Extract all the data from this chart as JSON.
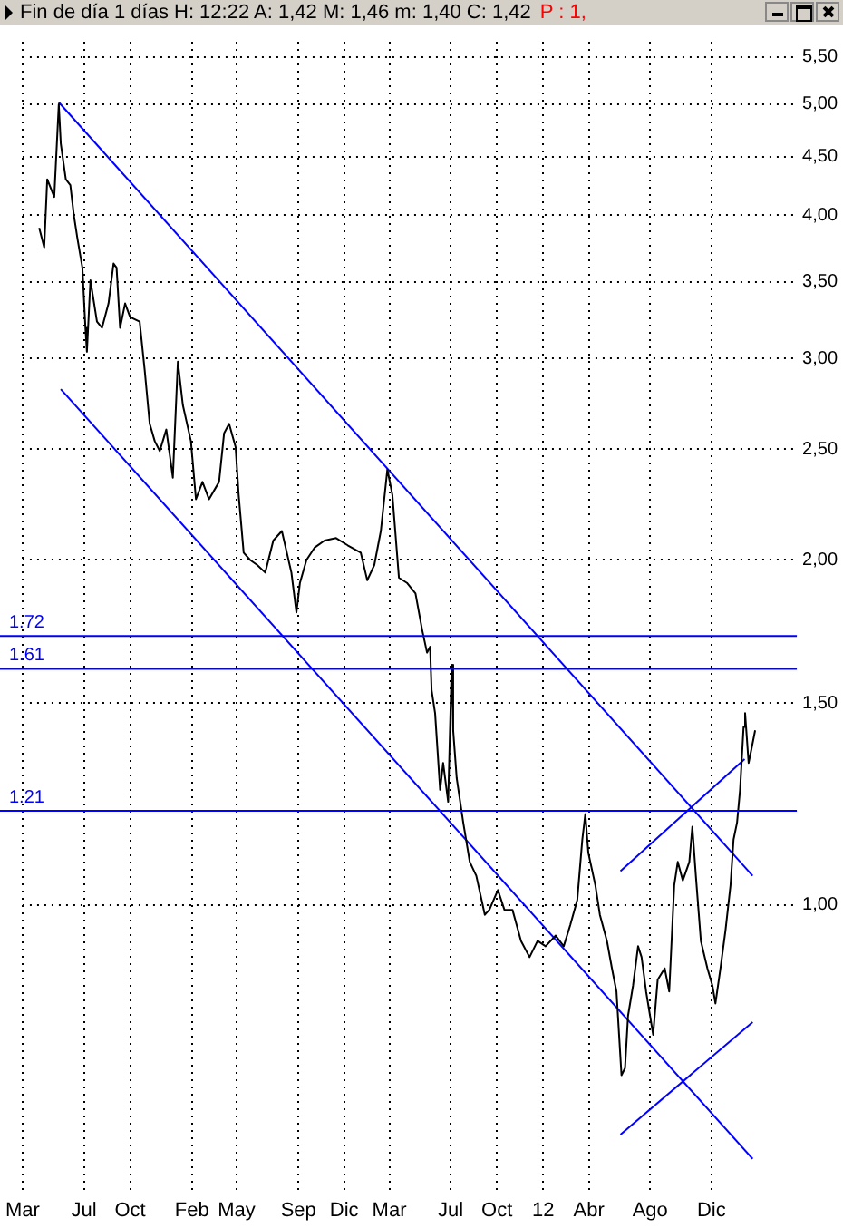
{
  "chart_data": {
    "type": "line",
    "title": "Fin de día 1 días H: 12:22 A: 1,42 M: 1,46 m: 1,40 C: 1,42",
    "annotations": [
      "P : 1,"
    ],
    "log": "y",
    "grid": true,
    "xlim": [
      "2009-03-01",
      "2013-05-20"
    ],
    "xticks": [
      {
        "value": "2009-03-01",
        "label": "Mar"
      },
      {
        "value": "2009-07-01",
        "label": "Jul"
      },
      {
        "value": "2009-10-01",
        "label": "Oct"
      },
      {
        "value": "2010-02-01",
        "label": "Feb"
      },
      {
        "value": "2010-05-01",
        "label": "May"
      },
      {
        "value": "2010-09-01",
        "label": "Sep"
      },
      {
        "value": "2010-12-01",
        "label": "Dic"
      },
      {
        "value": "2011-03-01",
        "label": "Mar"
      },
      {
        "value": "2011-07-01",
        "label": "Jul"
      },
      {
        "value": "2011-10-01",
        "label": "Oct"
      },
      {
        "value": "2012-01-01",
        "label": "12"
      },
      {
        "value": "2012-04-01",
        "label": "Abr"
      },
      {
        "value": "2012-08-01",
        "label": "Ago"
      },
      {
        "value": "2012-12-01",
        "label": "Dic"
      }
    ],
    "ylim": [
      0.56,
      5.67
    ],
    "yticks": [
      {
        "value": 1,
        "label": "1,00"
      },
      {
        "value": 1.5,
        "label": "1,50"
      },
      {
        "value": 2,
        "label": "2,00"
      },
      {
        "value": 2.5,
        "label": "2,50"
      },
      {
        "value": 3,
        "label": "3,00"
      },
      {
        "value": 3.5,
        "label": "3,50"
      },
      {
        "value": 4,
        "label": "4,00"
      },
      {
        "value": 4.5,
        "label": "4,50"
      },
      {
        "value": 5,
        "label": "5,00"
      },
      {
        "value": 5.5,
        "label": "5,50"
      }
    ],
    "ref_lines": [
      {
        "axis": "y",
        "value": 1.72,
        "label": "1.72",
        "color": "#0000ff"
      },
      {
        "axis": "y",
        "value": 1.61,
        "label": "1.61",
        "color": "#0000ff"
      },
      {
        "axis": "y",
        "value": 1.21,
        "label": "1.21",
        "color": "#0000ff"
      }
    ],
    "series": [
      {
        "color": "#000000",
        "x": [
          "2009-04-03",
          "2009-04-13",
          "2009-04-19",
          "2009-05-03",
          "2009-05-12",
          "2009-05-16",
          "2009-05-26",
          "2009-06-04",
          "2009-06-11",
          "2009-06-18",
          "2009-06-28",
          "2009-07-04",
          "2009-07-07",
          "2009-07-14",
          "2009-07-27",
          "2009-08-06",
          "2009-08-19",
          "2009-08-29",
          "2009-09-04",
          "2009-09-11",
          "2009-09-21",
          "2009-10-01",
          "2009-10-20",
          "2009-10-30",
          "2009-11-09",
          "2009-11-19",
          "2009-11-29",
          "2009-12-12",
          "2009-12-25",
          "2010-01-04",
          "2010-01-14",
          "2010-01-30",
          "2010-02-09",
          "2010-02-22",
          "2010-03-07",
          "2010-03-27",
          "2010-04-06",
          "2010-04-16",
          "2010-04-29",
          "2010-05-05",
          "2010-05-15",
          "2010-05-28",
          "2010-06-11",
          "2010-06-27",
          "2010-07-13",
          "2010-07-30",
          "2010-08-18",
          "2010-08-28",
          "2010-09-04",
          "2010-09-17",
          "2010-10-03",
          "2010-10-23",
          "2010-11-15",
          "2010-12-08",
          "2011-01-03",
          "2011-01-16",
          "2011-01-30",
          "2011-02-12",
          "2011-02-25",
          "2011-03-07",
          "2011-03-20",
          "2011-04-05",
          "2011-04-22",
          "2011-05-05",
          "2011-05-15",
          "2011-05-21",
          "2011-05-24",
          "2011-05-31",
          "2011-06-10",
          "2011-06-16",
          "2011-06-26",
          "2011-07-03",
          "2011-07-06",
          "2011-07-13",
          "2011-07-26",
          "2011-08-08",
          "2011-08-21",
          "2011-09-07",
          "2011-09-16",
          "2011-10-03",
          "2011-10-16",
          "2011-11-01",
          "2011-11-18",
          "2011-12-05",
          "2011-12-21",
          "2012-01-06",
          "2012-01-26",
          "2012-02-11",
          "2012-02-24",
          "2012-03-09",
          "2012-03-19",
          "2012-03-25",
          "2012-03-31",
          "2012-04-14",
          "2012-04-23",
          "2012-05-07",
          "2012-05-17",
          "2012-05-26",
          "2012-06-05",
          "2012-06-12",
          "2012-06-18",
          "2012-06-28",
          "2012-07-08",
          "2012-07-15",
          "2012-07-24",
          "2012-08-07",
          "2012-08-16",
          "2012-08-30",
          "2012-09-08",
          "2012-09-18",
          "2012-09-25",
          "2012-10-05",
          "2012-10-18",
          "2012-10-24",
          "2012-10-31",
          "2012-11-10",
          "2012-11-23",
          "2012-12-03",
          "2012-12-09",
          "2012-12-19",
          "2012-12-29",
          "2013-01-08",
          "2013-01-14",
          "2013-01-21",
          "2013-01-27",
          "2013-02-03",
          "2013-02-06",
          "2013-02-13",
          "2013-02-19",
          "2013-02-26"
        ],
        "values": [
          3.9,
          3.75,
          4.3,
          4.15,
          5.0,
          4.62,
          4.3,
          4.25,
          4.0,
          3.82,
          3.6,
          3.19,
          3.04,
          3.51,
          3.23,
          3.19,
          3.35,
          3.63,
          3.6,
          3.19,
          3.35,
          3.26,
          3.23,
          2.93,
          2.63,
          2.54,
          2.49,
          2.6,
          2.36,
          2.98,
          2.73,
          2.54,
          2.26,
          2.34,
          2.26,
          2.34,
          2.58,
          2.63,
          2.51,
          2.28,
          2.03,
          2.0,
          1.98,
          1.95,
          2.08,
          2.12,
          1.95,
          1.8,
          1.91,
          2.0,
          2.05,
          2.08,
          2.09,
          2.06,
          2.03,
          1.92,
          1.98,
          2.12,
          2.4,
          2.28,
          1.93,
          1.91,
          1.87,
          1.74,
          1.66,
          1.68,
          1.54,
          1.47,
          1.26,
          1.33,
          1.23,
          1.62,
          1.42,
          1.29,
          1.18,
          1.09,
          1.06,
          0.98,
          0.99,
          1.03,
          0.99,
          0.99,
          0.93,
          0.9,
          0.93,
          0.92,
          0.94,
          0.92,
          0.96,
          1.01,
          1.14,
          1.2,
          1.11,
          1.04,
          0.98,
          0.93,
          0.88,
          0.84,
          0.71,
          0.72,
          0.8,
          0.85,
          0.92,
          0.9,
          0.84,
          0.77,
          0.86,
          0.88,
          0.84,
          1.04,
          1.09,
          1.05,
          1.09,
          1.17,
          1.06,
          0.93,
          0.88,
          0.85,
          0.82,
          0.88,
          0.95,
          1.04,
          1.14,
          1.18,
          1.26,
          1.43,
          1.47,
          1.33,
          1.37,
          1.42
        ]
      },
      {
        "color": "#0000ff",
        "x": [
          "2009-05-12",
          "2013-02-21"
        ],
        "values": [
          5.02,
          1.06
        ]
      },
      {
        "color": "#0000ff",
        "x": [
          "2009-05-16",
          "2013-02-21"
        ],
        "values": [
          2.82,
          0.6
        ]
      },
      {
        "color": "#0000ff",
        "x": [
          "2012-06-03",
          "2013-02-05"
        ],
        "values": [
          1.07,
          1.34
        ]
      },
      {
        "color": "#0000ff",
        "x": [
          "2012-06-03",
          "2013-02-21"
        ],
        "values": [
          0.63,
          0.79
        ]
      }
    ]
  }
}
